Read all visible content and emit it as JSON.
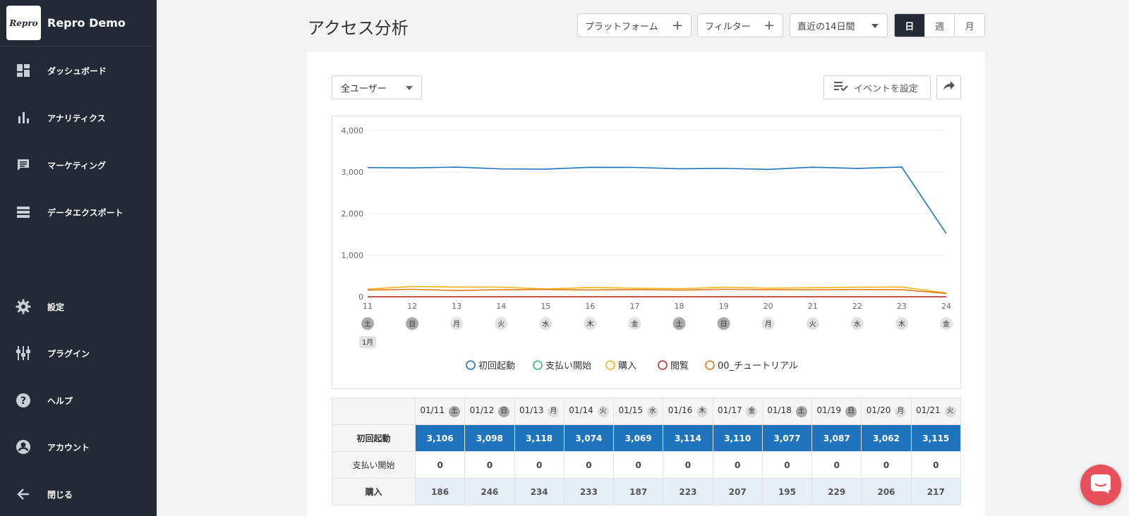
{
  "app": {
    "logo_text": "Repro",
    "name": "Repro Demo"
  },
  "sidebar": {
    "items": [
      {
        "label": "ダッシュボード",
        "icon": "dashboard-icon"
      },
      {
        "label": "アナリティクス",
        "icon": "bar-chart-icon"
      },
      {
        "label": "マーケティング",
        "icon": "message-icon"
      },
      {
        "label": "データエクスポート",
        "icon": "list-icon"
      }
    ],
    "bottom_items": [
      {
        "label": "設定",
        "icon": "gear-icon"
      },
      {
        "label": "プラグイン",
        "icon": "plugin-icon"
      },
      {
        "label": "ヘルプ",
        "icon": "help-icon"
      },
      {
        "label": "アカウント",
        "icon": "account-icon"
      },
      {
        "label": "閉じる",
        "icon": "arrow-left-icon"
      }
    ]
  },
  "header": {
    "title": "アクセス分析",
    "platform_label": "プラットフォーム",
    "filter_label": "フィルター",
    "period_label": "直近の14日間",
    "granularity": [
      "日",
      "週",
      "月"
    ],
    "granularity_active": "日"
  },
  "controls": {
    "user_segment": "全ユーザー",
    "event_button": "イベントを設定"
  },
  "chart_data": {
    "type": "line",
    "x": [
      "11",
      "12",
      "13",
      "14",
      "15",
      "16",
      "17",
      "18",
      "19",
      "20",
      "21",
      "22",
      "23",
      "24"
    ],
    "x_weekday": [
      "土",
      "日",
      "月",
      "火",
      "水",
      "木",
      "金",
      "土",
      "日",
      "月",
      "火",
      "水",
      "木",
      "金"
    ],
    "month_label": "1月",
    "ylim": [
      0,
      4000
    ],
    "yticks": [
      "0",
      "1,000",
      "2,000",
      "3,000",
      "4,000"
    ],
    "grid": true,
    "legend_position": "bottom",
    "series": [
      {
        "name": "初回起動",
        "color": "#1f73bd",
        "values": [
          3106,
          3098,
          3118,
          3074,
          3069,
          3114,
          3110,
          3077,
          3087,
          3062,
          3115,
          3085,
          3120,
          1520
        ]
      },
      {
        "name": "支払い開始",
        "color": "#37b38a",
        "values": [
          0,
          0,
          0,
          0,
          0,
          0,
          0,
          0,
          0,
          0,
          0,
          0,
          0,
          0
        ]
      },
      {
        "name": "購入",
        "color": "#f2b21a",
        "values": [
          186,
          246,
          234,
          233,
          187,
          223,
          207,
          195,
          229,
          206,
          217,
          230,
          235,
          90
        ]
      },
      {
        "name": "閲覧",
        "color": "#c62a2a",
        "values": [
          0,
          0,
          0,
          0,
          0,
          0,
          0,
          0,
          0,
          0,
          0,
          0,
          0,
          0
        ]
      },
      {
        "name": "00_チュートリアル",
        "color": "#e07b1a",
        "values": [
          160,
          180,
          150,
          170,
          175,
          165,
          172,
          160,
          180,
          170,
          168,
          175,
          170,
          80
        ]
      }
    ]
  },
  "table": {
    "columns": [
      {
        "date": "01/11",
        "dow": "土",
        "weekend": true
      },
      {
        "date": "01/12",
        "dow": "日",
        "weekend": true
      },
      {
        "date": "01/13",
        "dow": "月",
        "weekend": false
      },
      {
        "date": "01/14",
        "dow": "火",
        "weekend": false
      },
      {
        "date": "01/15",
        "dow": "水",
        "weekend": false
      },
      {
        "date": "01/16",
        "dow": "木",
        "weekend": false
      },
      {
        "date": "01/17",
        "dow": "金",
        "weekend": false
      },
      {
        "date": "01/18",
        "dow": "土",
        "weekend": true
      },
      {
        "date": "01/19",
        "dow": "日",
        "weekend": true
      },
      {
        "date": "01/20",
        "dow": "月",
        "weekend": false
      },
      {
        "date": "01/21",
        "dow": "火",
        "weekend": false
      }
    ],
    "rows": [
      {
        "label": "初回起動",
        "style": "blue",
        "values": [
          "3,106",
          "3,098",
          "3,118",
          "3,074",
          "3,069",
          "3,114",
          "3,110",
          "3,077",
          "3,087",
          "3,062",
          "3,115"
        ]
      },
      {
        "label": "支払い開始",
        "style": "zero",
        "values": [
          "0",
          "0",
          "0",
          "0",
          "0",
          "0",
          "0",
          "0",
          "0",
          "0",
          "0"
        ]
      },
      {
        "label": "購入",
        "style": "light",
        "values": [
          "186",
          "246",
          "234",
          "233",
          "187",
          "223",
          "207",
          "195",
          "229",
          "206",
          "217"
        ]
      }
    ]
  },
  "colors": {
    "sidebar_bg": "#232a36",
    "accent_blue": "#2074be",
    "chat_button": "#e8505b"
  }
}
